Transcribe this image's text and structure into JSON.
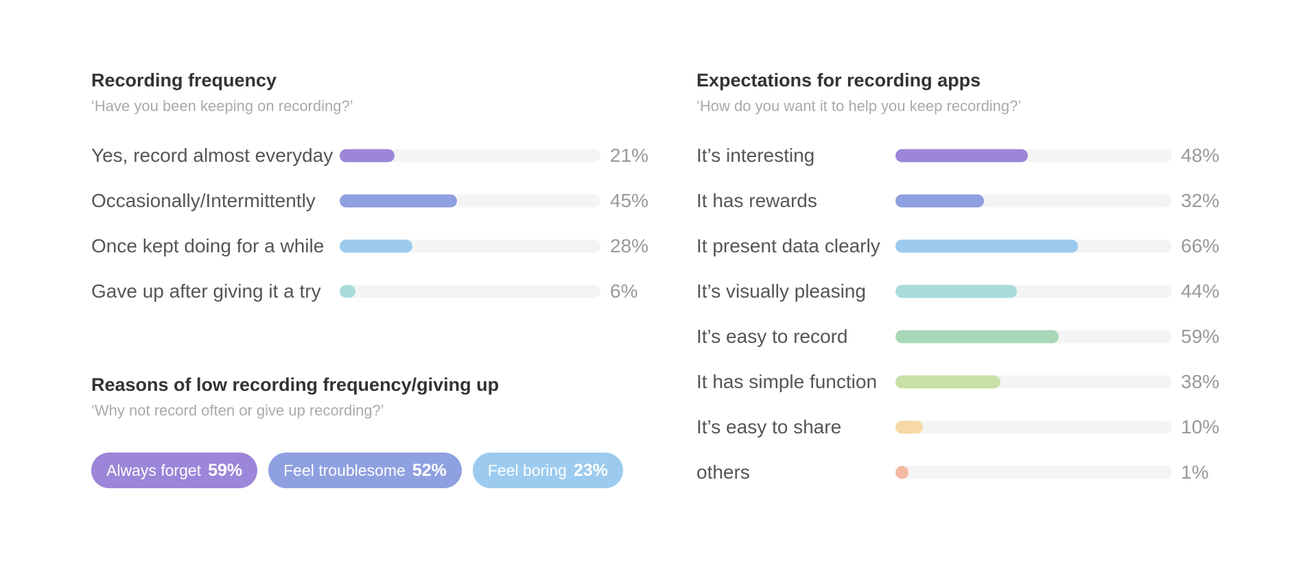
{
  "chart_data": [
    {
      "type": "bar",
      "orientation": "horizontal",
      "title": "Recording frequency",
      "subtitle": "‘Have you been keeping on recording?’",
      "categories": [
        "Yes, record almost everyday",
        "Occasionally/Intermittently",
        "Once kept doing for a while",
        "Gave up after giving it a try"
      ],
      "values": [
        21,
        45,
        28,
        6
      ],
      "value_labels": [
        "21%",
        "45%",
        "28%",
        "6%"
      ],
      "colors": [
        "#9b86d9",
        "#8fa0e0",
        "#9ccbef",
        "#a8dcdb"
      ],
      "xlim": [
        0,
        100
      ]
    },
    {
      "type": "bar",
      "orientation": "horizontal",
      "style": "pill",
      "title": "Reasons of low recording frequency/giving up",
      "subtitle": "‘Why not record often or give up recording?’",
      "categories": [
        "Always forget",
        "Feel troublesome",
        "Feel boring"
      ],
      "values": [
        59,
        52,
        23
      ],
      "value_labels": [
        "59%",
        "52%",
        "23%"
      ],
      "colors": [
        "#9b86d9",
        "#8fa0e0",
        "#9ccbef"
      ]
    },
    {
      "type": "bar",
      "orientation": "horizontal",
      "title": "Expectations for recording apps",
      "subtitle": "‘How do you want it to help you keep recording?’",
      "categories": [
        "It’s interesting",
        "It has rewards",
        "It present data clearly",
        "It’s visually pleasing",
        "It’s easy to record",
        "It has simple function",
        "It’s easy to share",
        "others"
      ],
      "values": [
        48,
        32,
        66,
        44,
        59,
        38,
        10,
        1
      ],
      "value_labels": [
        "48%",
        "32%",
        "66%",
        "44%",
        "59%",
        "38%",
        "10%",
        "1%"
      ],
      "colors": [
        "#9b86d9",
        "#8fa0e0",
        "#9ccbef",
        "#a8dcdb",
        "#a8d8b8",
        "#c8e0a6",
        "#f6d9a6",
        "#f5b9a3"
      ],
      "xlim": [
        0,
        100
      ]
    }
  ]
}
